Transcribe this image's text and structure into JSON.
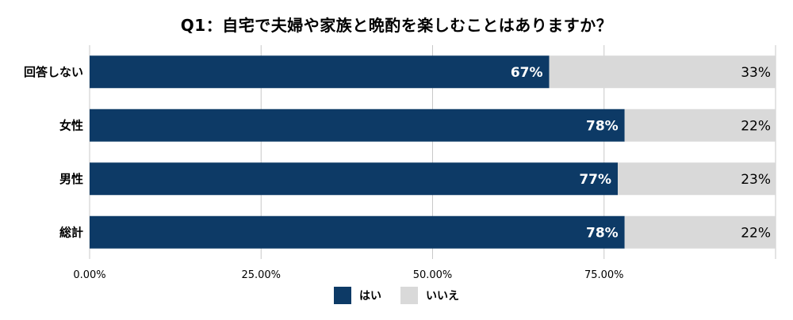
{
  "chart_data": {
    "type": "bar",
    "orientation": "horizontal",
    "stacked": true,
    "title": "Q1：自宅で夫婦や家族と晩酌を楽しむことはありますか？",
    "categories": [
      "回答しない",
      "女性",
      "男性",
      "総計"
    ],
    "series": [
      {
        "name": "はい",
        "values": [
          67,
          78,
          77,
          78
        ],
        "labels": [
          "67%",
          "78%",
          "77%",
          "78%"
        ],
        "color": "#0d3a66"
      },
      {
        "name": "いいえ",
        "values": [
          33,
          22,
          23,
          22
        ],
        "labels": [
          "33%",
          "22%",
          "23%",
          "22%"
        ],
        "color": "#d9d9d9"
      }
    ],
    "xlim": [
      0,
      100
    ],
    "xticks": [
      "0.00%",
      "25.00%",
      "50.00%",
      "75.00%"
    ],
    "grid": true,
    "legend_position": "bottom"
  }
}
